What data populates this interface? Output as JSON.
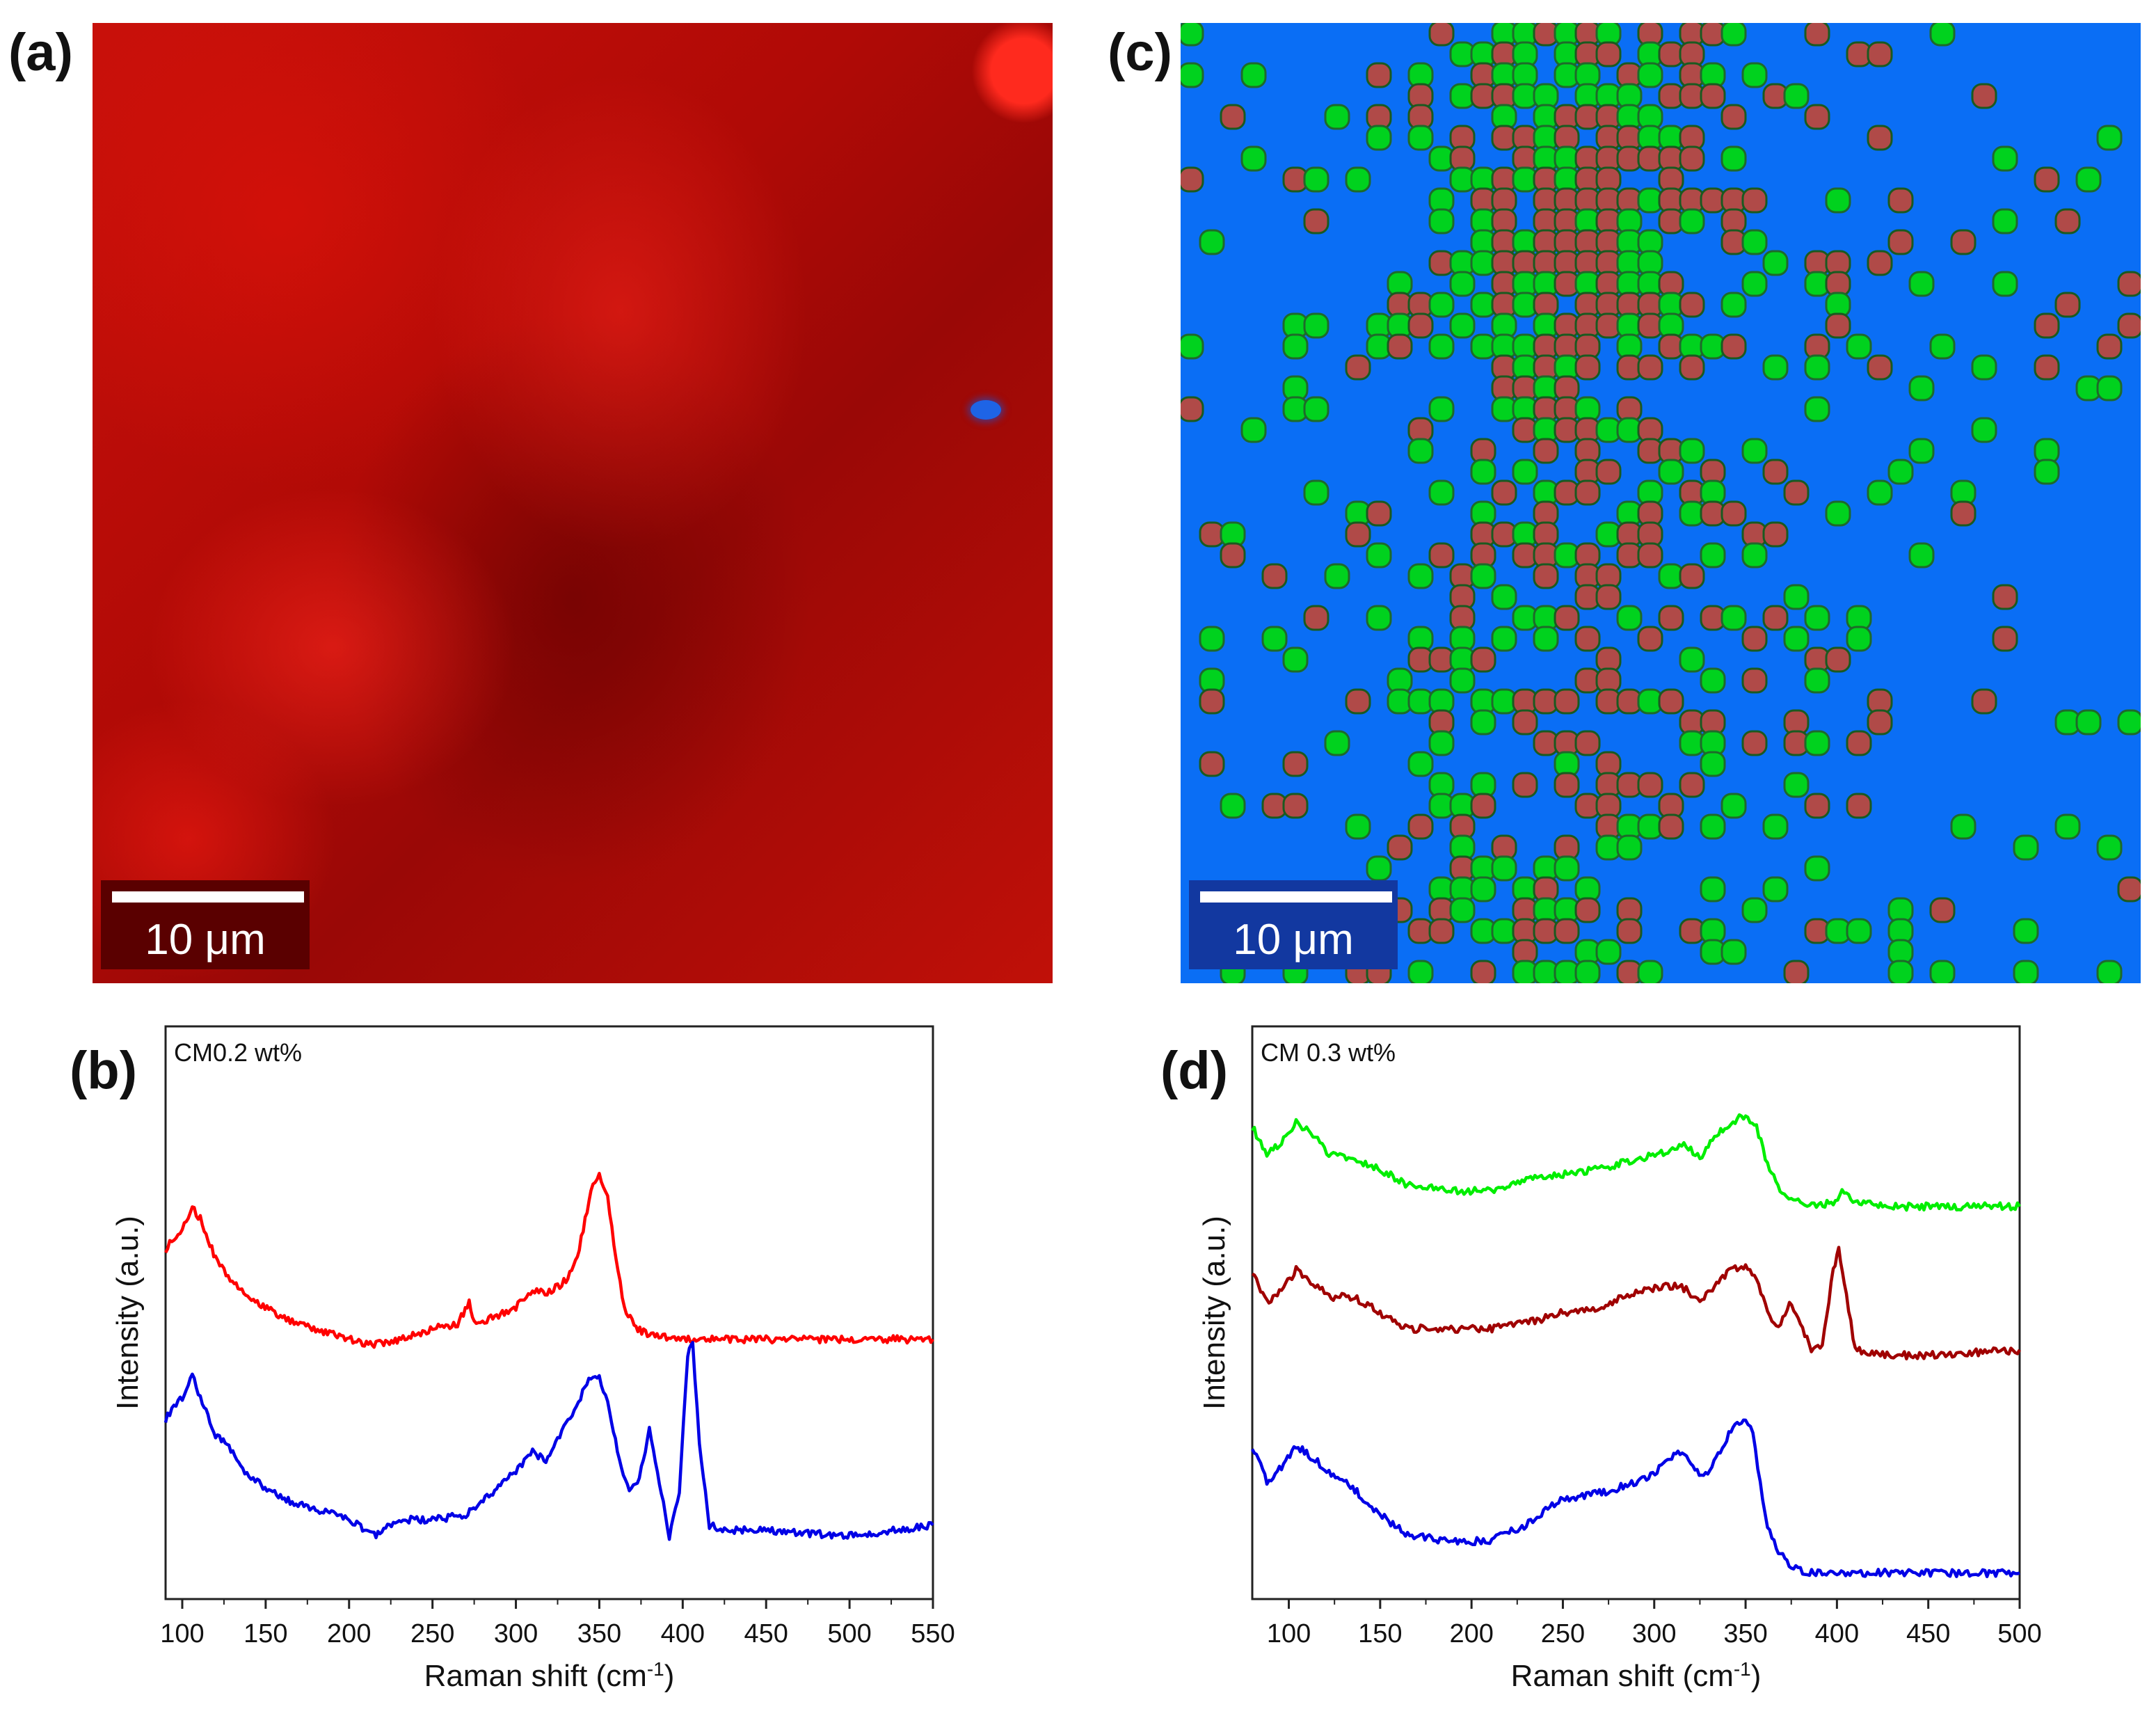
{
  "panels": {
    "a": {
      "letter": "(a)",
      "scalebar": "10 μm"
    },
    "b": {
      "letter": "(b)"
    },
    "c": {
      "letter": "(c)",
      "scalebar": "10 μm"
    },
    "d": {
      "letter": "(d)"
    }
  },
  "colors": {
    "red": "#ff0000",
    "blue": "#0000e6",
    "green": "#00ee00",
    "darkred": "#a00000",
    "map_blue": "#0a6ef5",
    "map_green": "#00d21e",
    "map_brown": "#b04a48"
  },
  "chart_data": [
    {
      "id": "b",
      "type": "line",
      "annotation": "CM0.2 wt%",
      "xlabel": "Raman shift (cm",
      "xlabel_sup": "-1",
      "xlabel_end": ")",
      "ylabel": "Intensity (a.u.)",
      "xlim": [
        90,
        550
      ],
      "ylim": [
        0,
        100
      ],
      "xticks": [
        100,
        150,
        200,
        250,
        300,
        350,
        400,
        450,
        500,
        550
      ],
      "series": [
        {
          "name": "red",
          "color": "#ff0000",
          "x": [
            90,
            100,
            106,
            112,
            120,
            130,
            145,
            160,
            180,
            200,
            215,
            230,
            250,
            265,
            272,
            275,
            285,
            300,
            310,
            320,
            330,
            338,
            345,
            350,
            355,
            360,
            365,
            372,
            380,
            395,
            420,
            450,
            500,
            550
          ],
          "y": [
            62,
            66,
            70,
            67,
            60,
            56,
            52,
            49,
            47,
            45,
            44,
            45,
            47,
            48,
            52,
            48,
            49,
            51,
            54,
            54,
            56,
            62,
            73,
            76,
            72,
            60,
            51,
            47,
            46,
            45,
            45,
            45,
            45,
            45
          ]
        },
        {
          "name": "blue",
          "color": "#0000e6",
          "x": [
            90,
            100,
            106,
            112,
            120,
            128,
            135,
            145,
            160,
            180,
            200,
            215,
            230,
            250,
            270,
            285,
            300,
            310,
            318,
            325,
            335,
            345,
            350,
            355,
            362,
            368,
            374,
            380,
            386,
            392,
            398,
            403,
            406,
            410,
            416,
            425,
            450,
            500,
            550
          ],
          "y": [
            30,
            34,
            38,
            33,
            27,
            25,
            21,
            18,
            15,
            13,
            11,
            8,
            11,
            11,
            12,
            16,
            20,
            24,
            22,
            26,
            32,
            38,
            38,
            33,
            22,
            16,
            19,
            28,
            18,
            8,
            16,
            42,
            44,
            25,
            10,
            9,
            9,
            8,
            10
          ]
        }
      ]
    },
    {
      "id": "d",
      "type": "line",
      "annotation": "CM 0.3 wt%",
      "xlabel": "Raman shift (cm",
      "xlabel_sup": "-1",
      "xlabel_end": ")",
      "ylabel": "Intensity (a.u.)",
      "xlim": [
        80,
        500
      ],
      "ylim": [
        0,
        100
      ],
      "xticks": [
        100,
        150,
        200,
        250,
        300,
        350,
        400,
        450,
        500
      ],
      "series": [
        {
          "name": "green",
          "color": "#00ee00",
          "x": [
            80,
            88,
            96,
            104,
            112,
            122,
            135,
            150,
            165,
            190,
            210,
            230,
            250,
            270,
            290,
            305,
            315,
            325,
            333,
            342,
            350,
            356,
            362,
            370,
            380,
            390,
            398,
            404,
            410,
            425,
            450,
            500
          ],
          "y": [
            85,
            80,
            82,
            86,
            84,
            80,
            79,
            77,
            74,
            73,
            73,
            75,
            76,
            77,
            79,
            80,
            82,
            79,
            83,
            86,
            87,
            85,
            78,
            72,
            71,
            70,
            71,
            73,
            71,
            70,
            70,
            70
          ]
        },
        {
          "name": "darkred",
          "color": "#a00000",
          "x": [
            80,
            88,
            96,
            104,
            112,
            122,
            135,
            150,
            165,
            190,
            210,
            230,
            250,
            270,
            290,
            305,
            315,
            325,
            333,
            342,
            350,
            356,
            362,
            368,
            374,
            380,
            386,
            392,
            398,
            401,
            404,
            410,
            425,
            450,
            500
          ],
          "y": [
            58,
            52,
            54,
            58,
            56,
            53,
            53,
            50,
            47,
            47,
            47,
            48,
            50,
            51,
            54,
            55,
            55,
            52,
            55,
            58,
            59,
            56,
            50,
            47,
            52,
            48,
            43,
            44,
            58,
            62,
            56,
            43,
            42,
            42,
            43
          ]
        },
        {
          "name": "blue",
          "color": "#0000e6",
          "x": [
            80,
            88,
            96,
            104,
            112,
            122,
            135,
            150,
            165,
            190,
            210,
            230,
            250,
            270,
            290,
            305,
            313,
            320,
            327,
            335,
            342,
            350,
            354,
            358,
            362,
            368,
            375,
            385,
            400,
            450,
            500
          ],
          "y": [
            25,
            18,
            21,
            25,
            23,
            20,
            17,
            12,
            8,
            7,
            7,
            10,
            15,
            16,
            18,
            21,
            24,
            22,
            19,
            23,
            28,
            30,
            27,
            18,
            10,
            5,
            2,
            1,
            1,
            1,
            1
          ]
        }
      ]
    }
  ]
}
